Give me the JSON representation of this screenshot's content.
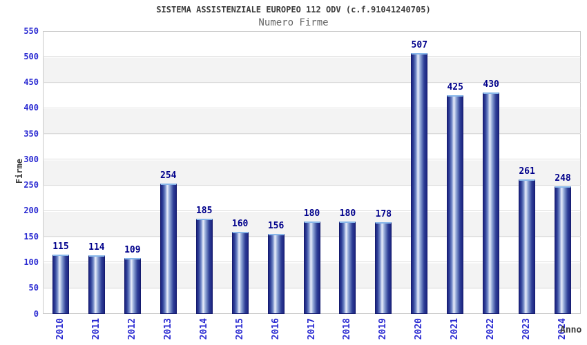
{
  "header": {
    "title": "SISTEMA ASSISTENZIALE EUROPEO 112 ODV (c.f.91041240705)",
    "subtitle": "Numero Firme"
  },
  "chart_data": {
    "type": "bar",
    "title": "SISTEMA ASSISTENZIALE EUROPEO 112 ODV (c.f.91041240705)",
    "subtitle": "Numero Firme",
    "xlabel": "Anno",
    "ylabel": "Firme",
    "categories": [
      "2010",
      "2011",
      "2012",
      "2013",
      "2014",
      "2015",
      "2016",
      "2017",
      "2018",
      "2019",
      "2020",
      "2021",
      "2022",
      "2023",
      "2024"
    ],
    "values": [
      115,
      114,
      109,
      254,
      185,
      160,
      156,
      180,
      180,
      178,
      507,
      425,
      430,
      261,
      248
    ],
    "ylim": [
      0,
      550
    ],
    "ytick_step": 50,
    "grid": true,
    "legend": "none",
    "colors": {
      "tick_label": "#2b2bd2",
      "value_label": "#00008b",
      "title": "#3c3c3c",
      "subtitle": "#666666",
      "bar_border": "#141a6e",
      "bar_cap": "#88b7ea",
      "bar_dark": "#1c2480",
      "bar_light": "#e9eefb",
      "band": "#f3f3f3",
      "gridline": "#dcdcdc",
      "plot_border": "#c8c8c8",
      "background": "#ffffff"
    }
  }
}
